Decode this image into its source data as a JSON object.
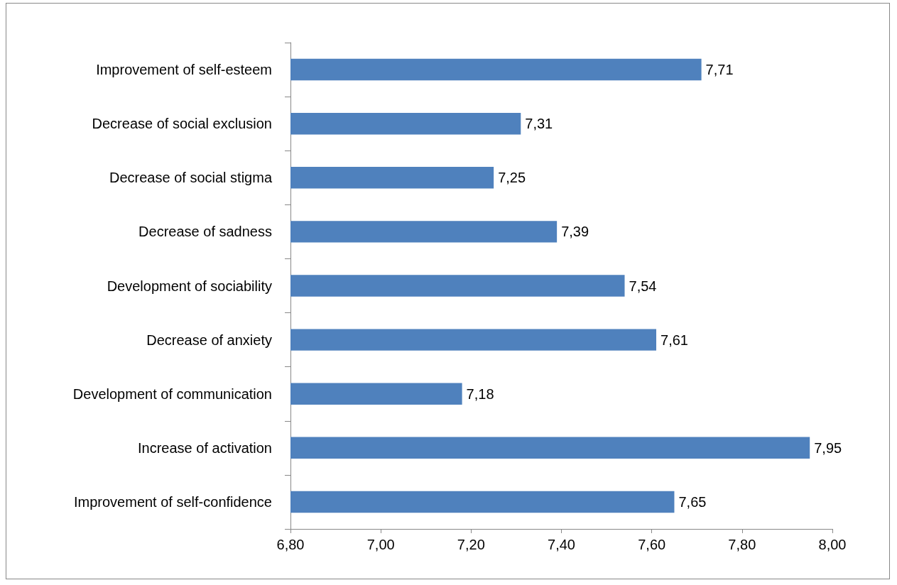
{
  "chart_data": {
    "type": "bar",
    "orientation": "horizontal",
    "categories": [
      "Improvement of self-esteem",
      "Decrease of social exclusion",
      "Decrease of social stigma",
      "Decrease of sadness",
      "Development of sociability",
      "Decrease of anxiety",
      "Development of communication",
      "Increase of activation",
      "Improvement of self-confidence"
    ],
    "values": [
      7.71,
      7.31,
      7.25,
      7.39,
      7.54,
      7.61,
      7.18,
      7.95,
      7.65
    ],
    "value_labels": [
      "7,71",
      "7,31",
      "7,25",
      "7,39",
      "7,54",
      "7,61",
      "7,18",
      "7,95",
      "7,65"
    ],
    "color": "#4f81bd",
    "xlim": [
      6.8,
      8.0
    ],
    "xticks": [
      {
        "value": 6.8,
        "label": "6,80"
      },
      {
        "value": 7.0,
        "label": "7,00"
      },
      {
        "value": 7.2,
        "label": "7,20"
      },
      {
        "value": 7.4,
        "label": "7,40"
      },
      {
        "value": 7.6,
        "label": "7,60"
      },
      {
        "value": 7.8,
        "label": "7,80"
      },
      {
        "value": 8.0,
        "label": "8,00"
      }
    ],
    "grid": false
  }
}
